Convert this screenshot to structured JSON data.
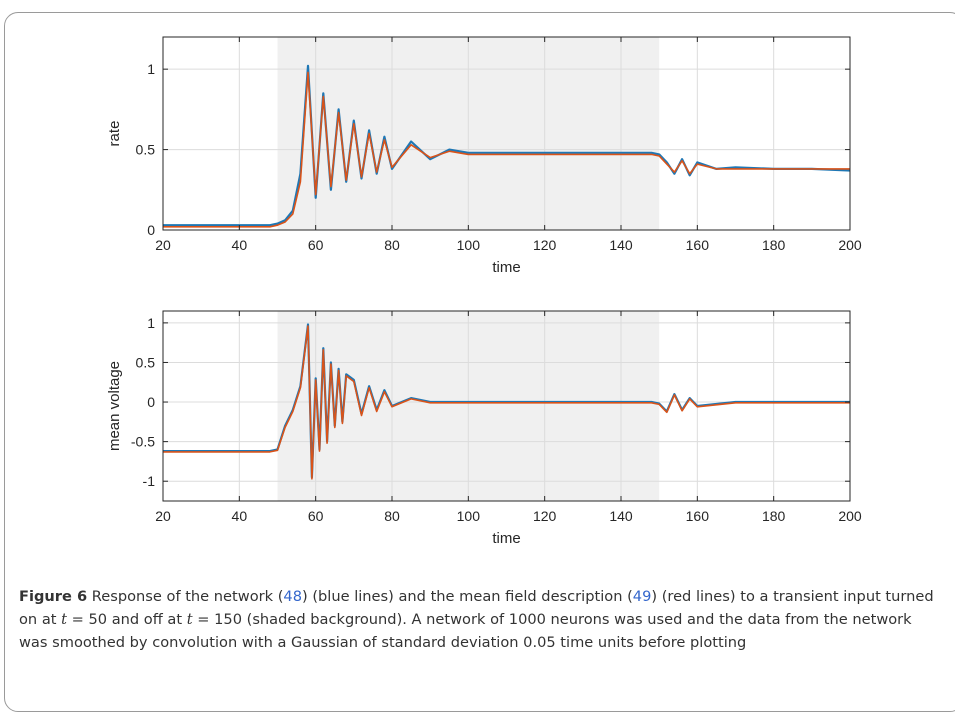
{
  "chart_data": [
    {
      "type": "line",
      "ylabel": "rate",
      "xlabel": "time",
      "xlim": [
        20,
        200
      ],
      "ylim": [
        0,
        1.2
      ],
      "xticks": [
        "20",
        "40",
        "60",
        "80",
        "100",
        "120",
        "140",
        "160",
        "180",
        "200"
      ],
      "yticks": [
        "0",
        "0.5",
        "1"
      ],
      "grid": true,
      "shaded_region": [
        50,
        150
      ],
      "colors": {
        "network": "#1f77b4",
        "mean_field": "#d95319",
        "shade": "#f0f0f0"
      },
      "series": [
        {
          "key": "network",
          "x": [
            20,
            30,
            40,
            48,
            50,
            52,
            54,
            56,
            58,
            60,
            62,
            64,
            66,
            68,
            70,
            72,
            74,
            76,
            78,
            80,
            85,
            90,
            95,
            100,
            110,
            120,
            130,
            140,
            148,
            150,
            152,
            154,
            156,
            158,
            160,
            165,
            170,
            180,
            190,
            200
          ],
          "y": [
            0.03,
            0.03,
            0.03,
            0.03,
            0.04,
            0.06,
            0.12,
            0.35,
            1.02,
            0.2,
            0.85,
            0.25,
            0.75,
            0.3,
            0.68,
            0.32,
            0.62,
            0.35,
            0.58,
            0.38,
            0.55,
            0.44,
            0.5,
            0.48,
            0.48,
            0.48,
            0.48,
            0.48,
            0.48,
            0.47,
            0.42,
            0.35,
            0.44,
            0.34,
            0.42,
            0.38,
            0.39,
            0.38,
            0.38,
            0.37
          ]
        },
        {
          "key": "mean_field",
          "x": [
            20,
            30,
            40,
            48,
            50,
            52,
            54,
            56,
            58,
            60,
            62,
            64,
            66,
            68,
            70,
            72,
            74,
            76,
            78,
            80,
            85,
            90,
            95,
            100,
            110,
            120,
            130,
            140,
            148,
            150,
            152,
            154,
            156,
            158,
            160,
            165,
            170,
            180,
            190,
            200
          ],
          "y": [
            0.02,
            0.02,
            0.02,
            0.02,
            0.03,
            0.05,
            0.1,
            0.3,
            0.98,
            0.22,
            0.83,
            0.27,
            0.73,
            0.31,
            0.66,
            0.33,
            0.6,
            0.36,
            0.56,
            0.39,
            0.53,
            0.45,
            0.49,
            0.47,
            0.47,
            0.47,
            0.47,
            0.47,
            0.47,
            0.46,
            0.41,
            0.36,
            0.43,
            0.35,
            0.41,
            0.38,
            0.38,
            0.38,
            0.38,
            0.38
          ]
        }
      ]
    },
    {
      "type": "line",
      "ylabel": "mean voltage",
      "xlabel": "time",
      "xlim": [
        20,
        200
      ],
      "ylim": [
        -1.25,
        1.15
      ],
      "xticks": [
        "20",
        "40",
        "60",
        "80",
        "100",
        "120",
        "140",
        "160",
        "180",
        "200"
      ],
      "yticks": [
        "-1",
        "-0.5",
        "0",
        "0.5",
        "1"
      ],
      "grid": true,
      "shaded_region": [
        50,
        150
      ],
      "colors": {
        "network": "#1f77b4",
        "mean_field": "#d95319",
        "shade": "#f0f0f0"
      },
      "series": [
        {
          "key": "network",
          "x": [
            20,
            30,
            40,
            48,
            50,
            52,
            54,
            56,
            58,
            59,
            60,
            61,
            62,
            63,
            64,
            65,
            66,
            67,
            68,
            70,
            72,
            74,
            76,
            78,
            80,
            85,
            90,
            100,
            110,
            120,
            130,
            140,
            148,
            150,
            152,
            154,
            156,
            158,
            160,
            170,
            180,
            190,
            200
          ],
          "y": [
            -0.62,
            -0.62,
            -0.62,
            -0.62,
            -0.6,
            -0.3,
            -0.1,
            0.2,
            0.98,
            -0.95,
            0.3,
            -0.6,
            0.68,
            -0.5,
            0.5,
            -0.3,
            0.42,
            -0.25,
            0.35,
            0.28,
            -0.15,
            0.2,
            -0.1,
            0.15,
            -0.05,
            0.05,
            0.0,
            0.0,
            0.0,
            0.0,
            0.0,
            0.0,
            0.0,
            -0.02,
            -0.12,
            0.1,
            -0.1,
            0.05,
            -0.05,
            0.0,
            0.0,
            0.0,
            0.0
          ]
        },
        {
          "key": "mean_field",
          "x": [
            20,
            30,
            40,
            48,
            50,
            52,
            54,
            56,
            58,
            59,
            60,
            61,
            62,
            63,
            64,
            65,
            66,
            67,
            68,
            70,
            72,
            74,
            76,
            78,
            80,
            85,
            90,
            100,
            110,
            120,
            130,
            140,
            148,
            150,
            152,
            154,
            156,
            158,
            160,
            170,
            180,
            190,
            200
          ],
          "y": [
            -0.63,
            -0.63,
            -0.63,
            -0.63,
            -0.61,
            -0.32,
            -0.12,
            0.18,
            0.96,
            -0.97,
            0.28,
            -0.62,
            0.66,
            -0.52,
            0.48,
            -0.32,
            0.4,
            -0.27,
            0.33,
            0.26,
            -0.17,
            0.18,
            -0.12,
            0.13,
            -0.06,
            0.04,
            -0.01,
            -0.01,
            -0.01,
            -0.01,
            -0.01,
            -0.01,
            -0.01,
            -0.03,
            -0.13,
            0.09,
            -0.11,
            0.04,
            -0.06,
            -0.01,
            -0.01,
            -0.01,
            -0.01
          ]
        }
      ]
    }
  ],
  "caption": {
    "label": "Figure 6",
    "parts": [
      "Response of the network (",
      "48",
      ") (blue lines) and the mean field description (",
      "49",
      ") (red lines) to a transient input turned on at ",
      "t",
      " = 50 and off at ",
      "t",
      " = 150 (shaded background). A network of 1000 neurons was used and the data from the network was smoothed by convolution with a Gaussian of standard deviation 0.05 time units before plotting"
    ]
  }
}
